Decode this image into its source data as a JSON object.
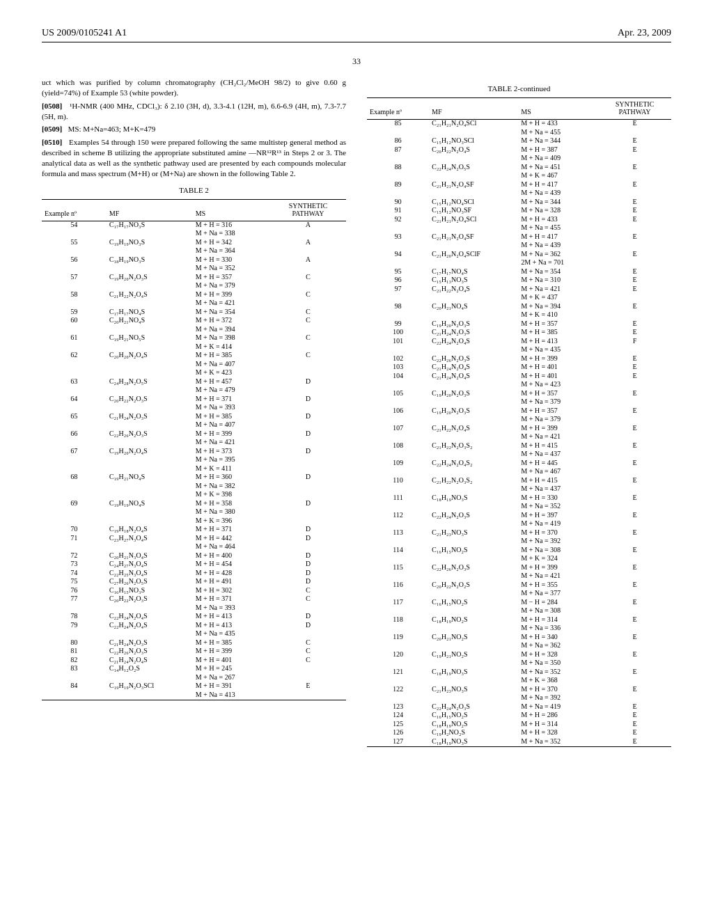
{
  "header": {
    "left": "US 2009/0105241 A1",
    "right": "Apr. 23, 2009"
  },
  "page_number": "33",
  "paragraphs": {
    "p1": "uct which was purified by column chromatography (CH₂Cl₂/MeOH 98/2) to give 0.60 g (yield=74%) of Example 53 (white powder).",
    "p2_label": "[0508]",
    "p2": "¹H-NMR (400 MHz, CDCl₃): δ 2.10 (3H, d), 3.3-4.1 (12H, m), 6.6-6.9 (4H, m), 7.3-7.7 (5H, m).",
    "p3_label": "[0509]",
    "p3": "MS: M+Na=463; M+K=479",
    "p4_label": "[0510]",
    "p4": "Examples 54 through 150 were prepared following the same multistep general method as described in scheme B utilizing the appropriate substituted amine —NR¹²R¹³ in Steps 2 or 3. The analytical data as well as the synthetic pathway used are presented by each compounds molecular formula and mass spectrum (M+H) or (M+Na) are shown in the following Table 2."
  },
  "table_caption": "TABLE 2",
  "table_caption_cont": "TABLE 2-continued",
  "table_headers": {
    "example": "Example nº",
    "mf": "MF",
    "ms": "MS",
    "pathway_l1": "SYNTHETIC",
    "pathway_l2": "PATHWAY"
  },
  "rows_left": [
    {
      "n": "54",
      "mf": "C₁₇H₁₇NO₃S",
      "ms": [
        "M + H = 316",
        "M + Na = 338"
      ],
      "p": "A"
    },
    {
      "n": "55",
      "mf": "C₁₉H₁₉NO₃S",
      "ms": [
        "M + H = 342",
        "M + Na = 364"
      ],
      "p": "A"
    },
    {
      "n": "56",
      "mf": "C₁₈H₁₉NO₃S",
      "ms": [
        "M + H = 330",
        "M + Na = 352"
      ],
      "p": "A"
    },
    {
      "n": "57",
      "mf": "C₁₉H₂₀N₂O₃S",
      "ms": [
        "M + H = 357",
        "M + Na = 379"
      ],
      "p": "C"
    },
    {
      "n": "58",
      "mf": "C₂₁H₂₂N₂O₄S",
      "ms": [
        "M + H = 399",
        "M + Na = 421"
      ],
      "p": "C"
    },
    {
      "n": "59",
      "mf": "C₁₇H₁₇NO₄S",
      "ms": [
        "M + Na = 354"
      ],
      "p": "C"
    },
    {
      "n": "60",
      "mf": "C₂₀H₂₁NO₄S",
      "ms": [
        "M + H = 372",
        "M + Na = 394"
      ],
      "p": "C"
    },
    {
      "n": "61",
      "mf": "C₁₉H₂₁NO₅S",
      "ms": [
        "M + Na = 398",
        "M + K = 414"
      ],
      "p": "C"
    },
    {
      "n": "62",
      "mf": "C₂₀H₂₀N₂O₄S",
      "ms": [
        "M + H = 385",
        "M + Na = 407",
        "M + K = 423"
      ],
      "p": "C"
    },
    {
      "n": "63",
      "mf": "C₂₄H₂₈N₂O₅S",
      "ms": [
        "M + H = 457",
        "M + Na = 479"
      ],
      "p": "D"
    },
    {
      "n": "64",
      "mf": "C₂₀H₂₂N₂O₃S",
      "ms": [
        "M + H = 371",
        "M + Na = 393"
      ],
      "p": "D"
    },
    {
      "n": "65",
      "mf": "C₂₁H₂₄N₂O₃S",
      "ms": [
        "M + H = 385",
        "M + Na = 407"
      ],
      "p": "D"
    },
    {
      "n": "66",
      "mf": "C₂₂H₂₆N₂O₃S",
      "ms": [
        "M + H = 399",
        "M + Na = 421"
      ],
      "p": "D"
    },
    {
      "n": "67",
      "mf": "C₁₉H₂₀N₂O₄S",
      "ms": [
        "M + H = 373",
        "M + Na = 395",
        "M + K = 411"
      ],
      "p": "D"
    },
    {
      "n": "68",
      "mf": "C₁₉H₂₁NO₄S",
      "ms": [
        "M + H = 360",
        "M + Na = 382",
        "M + K = 398"
      ],
      "p": "D"
    },
    {
      "n": "69",
      "mf": "C₁₉H₁₉NO₄S",
      "ms": [
        "M + H = 358",
        "M + Na = 380",
        "M + K = 396"
      ],
      "p": "D"
    },
    {
      "n": "70",
      "mf": "C₁₉H₁₈N₂O₄S",
      "ms": [
        "M + H = 371"
      ],
      "p": "D"
    },
    {
      "n": "71",
      "mf": "C₂₃H₂₇N₃O₄S",
      "ms": [
        "M + H = 442",
        "M + Na = 464"
      ],
      "p": "D"
    },
    {
      "n": "72",
      "mf": "C₂₀H₂₁N₃O₄S",
      "ms": [
        "M + H = 400"
      ],
      "p": "D"
    },
    {
      "n": "73",
      "mf": "C₂₄H₂₇N₃O₄S",
      "ms": [
        "M + H = 454"
      ],
      "p": "D"
    },
    {
      "n": "74",
      "mf": "C₂₂H₂₅N₃O₄S",
      "ms": [
        "M + H = 428"
      ],
      "p": "D"
    },
    {
      "n": "75",
      "mf": "C₂₇H₂₆N₂O₅S",
      "ms": [
        "M + H = 491"
      ],
      "p": "D"
    },
    {
      "n": "76",
      "mf": "C₁₆H₁₅NO₃S",
      "ms": [
        "M + H = 302"
      ],
      "p": "C"
    },
    {
      "n": "77",
      "mf": "C₂₀H₂₂N₂O₃S",
      "ms": [
        "M + H = 371",
        "M + Na = 393"
      ],
      "p": "C"
    },
    {
      "n": "78",
      "mf": "C₂₂H₂₄N₂O₄S",
      "ms": [
        "M + H = 413"
      ],
      "p": "D"
    },
    {
      "n": "79",
      "mf": "C₂₂H₂₄N₂O₄S",
      "ms": [
        "M + H = 413",
        "M + Na = 435"
      ],
      "p": "D"
    },
    {
      "n": "80",
      "mf": "C₂₁H₂₄N₂O₃S",
      "ms": [
        "M + H = 385"
      ],
      "p": "C"
    },
    {
      "n": "81",
      "mf": "C₂₂H₂₆N₂O₃S",
      "ms": [
        "M + H = 399"
      ],
      "p": "C"
    },
    {
      "n": "82",
      "mf": "C₂₁H₂₄N₂O₄S",
      "ms": [
        "M + H = 401"
      ],
      "p": "C"
    },
    {
      "n": "83",
      "mf": "C₁₄H₁₂O₂S",
      "ms": [
        "M + H = 245",
        "M + Na = 267"
      ],
      "p": ""
    },
    {
      "n": "84",
      "mf": "C₁₉H₁₉N₂O₃SCl",
      "ms": [
        "M + H = 391",
        "M + Na = 413"
      ],
      "p": "E"
    }
  ],
  "rows_right": [
    {
      "n": "85",
      "mf": "C₂₁H₂₁N₂O₄SCl",
      "ms": [
        "M + H = 433",
        "M + Na = 455"
      ],
      "p": "E"
    },
    {
      "n": "86",
      "mf": "C₁₅H₁₂NO₃SCl",
      "ms": [
        "M + Na = 344"
      ],
      "p": "E"
    },
    {
      "n": "87",
      "mf": "C₂₀H₂₂N₂O₄S",
      "ms": [
        "M + H = 387",
        "M + Na = 409"
      ],
      "p": "E"
    },
    {
      "n": "88",
      "mf": "C₂₂H₂₄N₂O₅S",
      "ms": [
        "M + Na = 451",
        "M + K = 467"
      ],
      "p": "E"
    },
    {
      "n": "89",
      "mf": "C₂₁H₂₁N₂O₄SF",
      "ms": [
        "M + H = 417",
        "M + Na = 439"
      ],
      "p": "E"
    },
    {
      "n": "90",
      "mf": "C₁₅H₁₂NO₄SCl",
      "ms": [
        "M + Na = 344"
      ],
      "p": "E"
    },
    {
      "n": "91",
      "mf": "C₁₅H₁₂NO₃SF",
      "ms": [
        "M + Na = 328"
      ],
      "p": "E"
    },
    {
      "n": "92",
      "mf": "C₂₁H₂₁N₂O₄SCl",
      "ms": [
        "M + H = 433",
        "M + Na = 455"
      ],
      "p": "E"
    },
    {
      "n": "93",
      "mf": "C₂₁H₂₁N₂O₄SF",
      "ms": [
        "M + H = 417",
        "M + Na = 439"
      ],
      "p": "E"
    },
    {
      "n": "94",
      "mf": "C₂₁H₂₀N₂O₄SClF",
      "ms": [
        "M + Na = 362",
        "2M + Na = 701"
      ],
      "p": "E"
    },
    {
      "n": "95",
      "mf": "C₁₇H₁₇NO₄S",
      "ms": [
        "M + Na = 354"
      ],
      "p": "E"
    },
    {
      "n": "96",
      "mf": "C₁₅H₁₃NO₃S",
      "ms": [
        "M + Na = 310"
      ],
      "p": "E"
    },
    {
      "n": "97",
      "mf": "C₂₁H₂₂N₂O₄S",
      "ms": [
        "M + Na = 421",
        "M + K = 437"
      ],
      "p": "E"
    },
    {
      "n": "98",
      "mf": "C₂₀H₂₁NO₄S",
      "ms": [
        "M + Na = 394",
        "M + K = 410"
      ],
      "p": "E"
    },
    {
      "n": "99",
      "mf": "C₁₉H₂₀N₂O₃S",
      "ms": [
        "M + H = 357"
      ],
      "p": "E"
    },
    {
      "n": "100",
      "mf": "C₂₁H₂₄N₂O₃S",
      "ms": [
        "M + H = 385"
      ],
      "p": "E"
    },
    {
      "n": "101",
      "mf": "C₂₂H₂₄N₂O₄S",
      "ms": [
        "M + H = 413",
        "M + Na = 435"
      ],
      "p": "F"
    },
    {
      "n": "102",
      "mf": "C₂₂H₂₆N₂O₃S",
      "ms": [
        "M + H = 399"
      ],
      "p": "E"
    },
    {
      "n": "103",
      "mf": "C₂₁H₂₄N₂O₄S",
      "ms": [
        "M + H = 401"
      ],
      "p": "E"
    },
    {
      "n": "104",
      "mf": "C₂₁H₂₄N₂O₄S",
      "ms": [
        "M + H = 401",
        "M + Na = 423"
      ],
      "p": "E"
    },
    {
      "n": "105",
      "mf": "C₁₉H₂₀N₂O₃S",
      "ms": [
        "M + H = 357",
        "M + Na = 379"
      ],
      "p": "E"
    },
    {
      "n": "106",
      "mf": "C₁₉H₂₀N₂O₃S",
      "ms": [
        "M + H = 357",
        "M + Na = 379"
      ],
      "p": "E"
    },
    {
      "n": "107",
      "mf": "C₂₁H₂₂N₂O₄S",
      "ms": [
        "M + H = 399",
        "M + Na = 421"
      ],
      "p": "E"
    },
    {
      "n": "108",
      "mf": "C₂₁H₂₂N₂O₃S₂",
      "ms": [
        "M + H = 415",
        "M + Na = 437"
      ],
      "p": "E"
    },
    {
      "n": "109",
      "mf": "C₂₂H₂₄N₂O₄S₂",
      "ms": [
        "M + H = 445",
        "M + Na = 467"
      ],
      "p": "E"
    },
    {
      "n": "110",
      "mf": "C₂₁H₂₂N₂O₃S₂",
      "ms": [
        "M + H = 415",
        "M + Na = 437"
      ],
      "p": "E"
    },
    {
      "n": "111",
      "mf": "C₁₈H₁₉NO₃S",
      "ms": [
        "M + H = 330",
        "M + Na = 352"
      ],
      "p": "E"
    },
    {
      "n": "112",
      "mf": "C₂₂H₂₄N₂O₃S",
      "ms": [
        "M + H = 397",
        "M + Na = 419"
      ],
      "p": "E"
    },
    {
      "n": "113",
      "mf": "C₂₁H₂₃NO₃S",
      "ms": [
        "M + H = 370",
        "M + Na = 392"
      ],
      "p": "E"
    },
    {
      "n": "114",
      "mf": "C₁₆H₁₅NO₂S",
      "ms": [
        "M + Na = 308",
        "M + K = 324"
      ],
      "p": "E"
    },
    {
      "n": "115",
      "mf": "C₂₂H₂₆N₂O₃S",
      "ms": [
        "M + H = 399",
        "M + Na = 421"
      ],
      "p": "E"
    },
    {
      "n": "116",
      "mf": "C₂₀H₂₂N₂O₂S",
      "ms": [
        "M + H = 355",
        "M + Na = 377"
      ],
      "p": "E"
    },
    {
      "n": "117",
      "mf": "C₁₆H₁₅NO₂S",
      "ms": [
        "M − H = 284",
        "M + Na = 308"
      ],
      "p": "E"
    },
    {
      "n": "118",
      "mf": "C₁₈H₁₉NO₂S",
      "ms": [
        "M + H = 314",
        "M + Na = 336"
      ],
      "p": "E"
    },
    {
      "n": "119",
      "mf": "C₂₀H₂₁NO₂S",
      "ms": [
        "M + H = 340",
        "M + Na = 362"
      ],
      "p": "E"
    },
    {
      "n": "120",
      "mf": "C₁₉H₂₁NO₂S",
      "ms": [
        "M + H = 328",
        "M + Na = 350"
      ],
      "p": "E"
    },
    {
      "n": "121",
      "mf": "C₁₈H₁₉NO₃S",
      "ms": [
        "M + Na = 352",
        "M + K = 368"
      ],
      "p": "E"
    },
    {
      "n": "122",
      "mf": "C₂₁H₂₃NO₃S",
      "ms": [
        "M + H = 370",
        "M + Na = 392"
      ],
      "p": "E"
    },
    {
      "n": "123",
      "mf": "C₂₂H₂₄N₂O₃S",
      "ms": [
        "M + Na = 419"
      ],
      "p": "E"
    },
    {
      "n": "124",
      "mf": "C₁₆H₁₅NO₂S",
      "ms": [
        "M + H = 286"
      ],
      "p": "E"
    },
    {
      "n": "125",
      "mf": "C₁₈H₁₉NO₂S",
      "ms": [
        "M + H = 314"
      ],
      "p": "E"
    },
    {
      "n": "126",
      "mf": "C₁₉H₂NO₂S",
      "ms": [
        "M + H = 328"
      ],
      "p": "E"
    },
    {
      "n": "127",
      "mf": "C₁₈H₁₉NO₃S",
      "ms": [
        "M + Na = 352"
      ],
      "p": "E"
    }
  ]
}
